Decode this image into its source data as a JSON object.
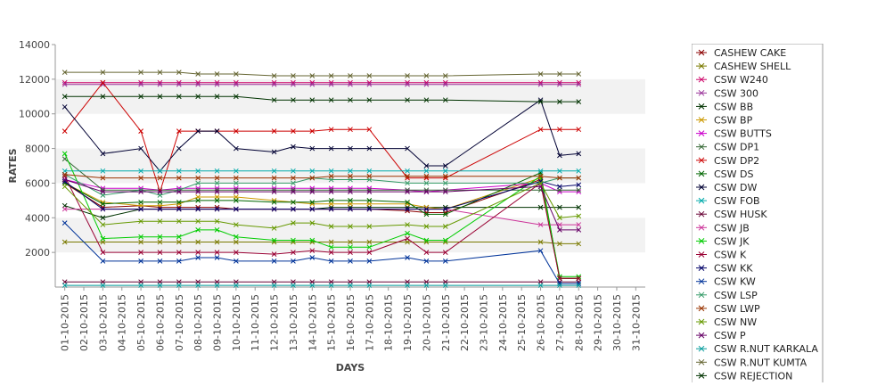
{
  "chart_data": {
    "type": "line",
    "title": "",
    "xlabel": "DAYS",
    "ylabel": "RATES",
    "ylim": [
      0,
      14000
    ],
    "yticks": [
      2000,
      4000,
      6000,
      8000,
      10000,
      12000,
      14000
    ],
    "grid": "alternating horizontal bands",
    "legend_position": "right",
    "categories": [
      "01-10-2015",
      "02-10-2015",
      "03-10-2015",
      "04-10-2015",
      "05-10-2015",
      "06-10-2015",
      "07-10-2015",
      "08-10-2015",
      "09-10-2015",
      "10-10-2015",
      "11-10-2015",
      "12-10-2015",
      "13-10-2015",
      "14-10-2015",
      "15-10-2015",
      "16-10-2015",
      "17-10-2015",
      "18-10-2015",
      "19-10-2015",
      "20-10-2015",
      "21-10-2015",
      "22-10-2015",
      "23-10-2015",
      "24-10-2015",
      "25-10-2015",
      "26-10-2015",
      "27-10-2015",
      "28-10-2015",
      "29-10-2015",
      "30-10-2015",
      "31-10-2015"
    ],
    "dates": [
      "01-10-2015",
      "03-10-2015",
      "05-10-2015",
      "06-10-2015",
      "07-10-2015",
      "08-10-2015",
      "09-10-2015",
      "10-10-2015",
      "12-10-2015",
      "13-10-2015",
      "14-10-2015",
      "15-10-2015",
      "16-10-2015",
      "17-10-2015",
      "19-10-2015",
      "20-10-2015",
      "21-10-2015",
      "26-10-2015",
      "27-10-2015",
      "28-10-2015"
    ],
    "series": [
      {
        "name": "CASHEW CAKE",
        "color": "#8b0000",
        "values": [
          6000,
          4600,
          4700,
          4600,
          4600,
          4600,
          4600,
          4500,
          4500,
          4500,
          4500,
          4500,
          4500,
          4500,
          4400,
          4300,
          4300,
          6200,
          500,
          500
        ]
      },
      {
        "name": "CASHEW SHELL",
        "color": "#7a7a00",
        "values": [
          2600,
          2600,
          2600,
          2600,
          2600,
          2600,
          2600,
          2600,
          2600,
          2600,
          2600,
          2600,
          2600,
          2600,
          2600,
          2600,
          2600,
          2600,
          2500,
          2500
        ]
      },
      {
        "name": "CSW  W240",
        "color": "#cc0066",
        "values": [
          11800,
          11800,
          11800,
          11800,
          11800,
          11800,
          11800,
          11800,
          11800,
          11800,
          11800,
          11800,
          11800,
          11800,
          11800,
          11800,
          11800,
          11800,
          11800,
          11800
        ]
      },
      {
        "name": "CSW 300",
        "color": "#993399",
        "values": [
          11700,
          11700,
          11700,
          11700,
          11700,
          11700,
          11700,
          11700,
          11700,
          11700,
          11700,
          11700,
          11700,
          11700,
          11700,
          11700,
          11700,
          11700,
          11700,
          11700
        ]
      },
      {
        "name": "CSW BB",
        "color": "#003300",
        "values": [
          4700,
          4000,
          4500,
          4500,
          4500,
          4500,
          4500,
          4500,
          4500,
          4500,
          4500,
          4600,
          4600,
          4600,
          4600,
          4600,
          4600,
          4600,
          4600,
          4600
        ]
      },
      {
        "name": "CSW BP",
        "color": "#cc9900",
        "values": [
          6000,
          4900,
          4700,
          4700,
          4800,
          5200,
          5200,
          5200,
          5000,
          4900,
          4800,
          4800,
          4800,
          4800,
          4800,
          4600,
          4500,
          6300,
          500,
          500
        ]
      },
      {
        "name": "CSW BUTTS",
        "color": "#cc00cc",
        "values": [
          6200,
          5700,
          5700,
          5600,
          5700,
          5700,
          5700,
          5700,
          5700,
          5700,
          5700,
          5700,
          5700,
          5700,
          5600,
          5500,
          5600,
          6000,
          5500,
          5500
        ]
      },
      {
        "name": "CSW DP1",
        "color": "#336633",
        "values": [
          7400,
          5600,
          5600,
          5600,
          5600,
          5600,
          5600,
          5600,
          5600,
          5600,
          5600,
          5600,
          5600,
          5600,
          5600,
          5600,
          5600,
          5600,
          5600,
          5600
        ]
      },
      {
        "name": "CSW DP2",
        "color": "#cc0000",
        "values": [
          9000,
          11800,
          9000,
          5500,
          9000,
          9000,
          9000,
          9000,
          9000,
          9000,
          9000,
          9100,
          9100,
          9100,
          6300,
          6300,
          6300,
          9100,
          9100,
          9100
        ]
      },
      {
        "name": "CSW DS",
        "color": "#006600",
        "values": [
          6000,
          4800,
          4900,
          4900,
          4900,
          5000,
          5000,
          5000,
          4900,
          4900,
          4900,
          5000,
          5000,
          5000,
          4900,
          4200,
          4200,
          6600,
          500,
          500
        ]
      },
      {
        "name": "CSW DW",
        "color": "#000033",
        "values": [
          10400,
          7700,
          8000,
          6700,
          8000,
          9000,
          9000,
          8000,
          7800,
          8100,
          8000,
          8000,
          8000,
          8000,
          8000,
          7000,
          7000,
          10800,
          7600,
          7700
        ]
      },
      {
        "name": "CSW FOB",
        "color": "#00aaaa",
        "values": [
          6700,
          6700,
          6700,
          6700,
          6700,
          6700,
          6700,
          6700,
          6700,
          6700,
          6700,
          6700,
          6700,
          6700,
          6700,
          6700,
          6700,
          6700,
          6700,
          6700
        ]
      },
      {
        "name": "CSW HUSK",
        "color": "#660033",
        "values": [
          300,
          300,
          300,
          300,
          300,
          300,
          300,
          300,
          300,
          300,
          300,
          300,
          300,
          300,
          300,
          300,
          300,
          300,
          300,
          300
        ]
      },
      {
        "name": "CSW JB",
        "color": "#cc3399",
        "values": [
          4500,
          4500,
          4500,
          4500,
          4500,
          4500,
          4500,
          4500,
          4500,
          4500,
          4500,
          4500,
          4500,
          4500,
          4500,
          4500,
          4500,
          3600,
          3600,
          3600
        ]
      },
      {
        "name": "CSW JK",
        "color": "#00cc00",
        "values": [
          7700,
          2800,
          2900,
          2900,
          2900,
          3300,
          3300,
          2900,
          2700,
          2700,
          2700,
          2300,
          2300,
          2300,
          3100,
          2700,
          2700,
          6400,
          600,
          600
        ]
      },
      {
        "name": "CSW K",
        "color": "#990033",
        "values": [
          6400,
          2000,
          2000,
          2000,
          2000,
          2000,
          2000,
          2000,
          1900,
          2000,
          2100,
          2000,
          2000,
          2000,
          2800,
          2000,
          2000,
          6000,
          500,
          500
        ]
      },
      {
        "name": "CSW KK",
        "color": "#000066",
        "values": [
          6100,
          4500,
          4500,
          4500,
          4500,
          4500,
          4500,
          4500,
          4500,
          4500,
          4500,
          4500,
          4500,
          4500,
          4500,
          4500,
          4500,
          6100,
          5800,
          5900
        ]
      },
      {
        "name": "CSW KW",
        "color": "#003399",
        "values": [
          3700,
          1500,
          1500,
          1500,
          1500,
          1700,
          1700,
          1500,
          1500,
          1500,
          1700,
          1500,
          1500,
          1500,
          1700,
          1500,
          1500,
          2100,
          200,
          200
        ]
      },
      {
        "name": "CSW LSP",
        "color": "#339966",
        "values": [
          6500,
          5300,
          5600,
          5300,
          5600,
          6000,
          6000,
          6000,
          6000,
          6000,
          6300,
          6200,
          6200,
          6200,
          6000,
          6000,
          6000,
          6000,
          6300,
          6300
        ]
      },
      {
        "name": "CSW LWP",
        "color": "#993300",
        "values": [
          6500,
          6300,
          6300,
          6300,
          6300,
          6300,
          6300,
          6300,
          6300,
          6300,
          6300,
          6400,
          6400,
          6400,
          6400,
          6400,
          6400,
          6400,
          6300,
          6300
        ]
      },
      {
        "name": "CSW NW",
        "color": "#669900",
        "values": [
          5800,
          3600,
          3800,
          3800,
          3800,
          3800,
          3800,
          3600,
          3400,
          3700,
          3700,
          3500,
          3500,
          3500,
          3600,
          3500,
          3500,
          6000,
          4000,
          4100
        ]
      },
      {
        "name": "CSW P",
        "color": "#660066",
        "values": [
          6200,
          5500,
          5500,
          5500,
          5500,
          5500,
          5500,
          5500,
          5500,
          5500,
          5500,
          5500,
          5500,
          5500,
          5500,
          5500,
          5500,
          5800,
          3300,
          3300
        ]
      },
      {
        "name": "CSW R.NUT KARKALA",
        "color": "#009999",
        "values": [
          100,
          100,
          100,
          100,
          100,
          100,
          100,
          100,
          100,
          100,
          100,
          100,
          100,
          100,
          100,
          100,
          100,
          100,
          100,
          100
        ]
      },
      {
        "name": "CSW R.NUT KUMTA",
        "color": "#666633",
        "values": [
          12400,
          12400,
          12400,
          12400,
          12400,
          12300,
          12300,
          12300,
          12200,
          12200,
          12200,
          12200,
          12200,
          12200,
          12200,
          12200,
          12200,
          12300,
          12300,
          12300
        ]
      },
      {
        "name": "CSW REJECTION",
        "color": "#003300",
        "values": [
          11000,
          11000,
          11000,
          11000,
          11000,
          11000,
          11000,
          11000,
          10800,
          10800,
          10800,
          10800,
          10800,
          10800,
          10800,
          10800,
          10800,
          10700,
          10700,
          10700
        ]
      }
    ]
  }
}
